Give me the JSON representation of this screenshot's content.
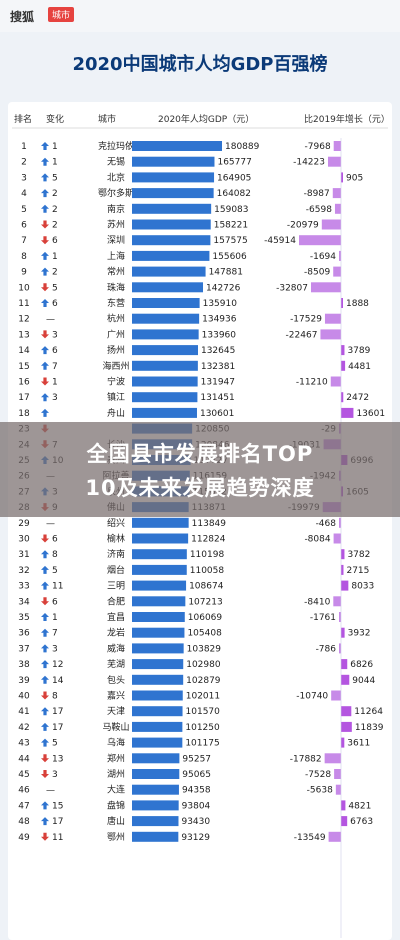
{
  "header": {
    "logo": "搜狐",
    "logo_tag": "城市"
  },
  "chart_data": {
    "type": "table",
    "title": "2020中国城市人均GDP百强榜",
    "columns": [
      "排名",
      "变化",
      "城市",
      "2020年人均GDP（元）",
      "比2019年增长（元）"
    ],
    "rows": [
      {
        "rank": "1",
        "change": "1",
        "dir": "up",
        "city": "克拉玛依",
        "gdp": 180889,
        "growth": -7968
      },
      {
        "rank": "2",
        "change": "1",
        "dir": "up",
        "city": "无锡",
        "gdp": 165777,
        "growth": -14223
      },
      {
        "rank": "3",
        "change": "5",
        "dir": "up",
        "city": "北京",
        "gdp": 164905,
        "growth": 905
      },
      {
        "rank": "4",
        "change": "2",
        "dir": "up",
        "city": "鄂尔多斯",
        "gdp": 164082,
        "growth": -8987
      },
      {
        "rank": "5",
        "change": "2",
        "dir": "up",
        "city": "南京",
        "gdp": 159083,
        "growth": -6598
      },
      {
        "rank": "6",
        "change": "2",
        "dir": "down",
        "city": "苏州",
        "gdp": 158221,
        "growth": -20979
      },
      {
        "rank": "7",
        "change": "6",
        "dir": "down",
        "city": "深圳",
        "gdp": 157575,
        "growth": -45914
      },
      {
        "rank": "8",
        "change": "1",
        "dir": "up",
        "city": "上海",
        "gdp": 155606,
        "growth": -1694
      },
      {
        "rank": "9",
        "change": "2",
        "dir": "up",
        "city": "常州",
        "gdp": 147881,
        "growth": -8509
      },
      {
        "rank": "10",
        "change": "5",
        "dir": "down",
        "city": "珠海",
        "gdp": 142726,
        "growth": -32807
      },
      {
        "rank": "11",
        "change": "6",
        "dir": "up",
        "city": "东营",
        "gdp": 135910,
        "growth": 1888
      },
      {
        "rank": "12",
        "change": "—",
        "dir": "none",
        "city": "杭州",
        "gdp": 134936,
        "growth": -17529
      },
      {
        "rank": "13",
        "change": "3",
        "dir": "down",
        "city": "广州",
        "gdp": 133960,
        "growth": -22467
      },
      {
        "rank": "14",
        "change": "6",
        "dir": "up",
        "city": "扬州",
        "gdp": 132645,
        "growth": 3789
      },
      {
        "rank": "15",
        "change": "7",
        "dir": "up",
        "city": "海西州",
        "gdp": 132381,
        "growth": 4481
      },
      {
        "rank": "16",
        "change": "1",
        "dir": "down",
        "city": "宁波",
        "gdp": 131947,
        "growth": -11210
      },
      {
        "rank": "17",
        "change": "3",
        "dir": "up",
        "city": "镇江",
        "gdp": 131451,
        "growth": 2472
      },
      {
        "rank": "18",
        "change": "",
        "dir": "up",
        "city": "舟山",
        "gdp": 130601,
        "growth": 13601
      },
      {
        "rank": "23",
        "change": "",
        "dir": "down",
        "city": "",
        "gdp": 120850,
        "growth": -29
      },
      {
        "rank": "24",
        "change": "7",
        "dir": "down",
        "city": "长沙",
        "gdp": 120846,
        "growth": -19031
      },
      {
        "rank": "25",
        "change": "10",
        "dir": "up",
        "city": "泰州",
        "gdp": 117727,
        "growth": 6996
      },
      {
        "rank": "26",
        "change": "—",
        "dir": "none",
        "city": "阿拉善",
        "gdp": 116159,
        "growth": -1942
      },
      {
        "rank": "27",
        "change": "3",
        "dir": "up",
        "city": "泉州",
        "gdp": 115672,
        "growth": 1605
      },
      {
        "rank": "28",
        "change": "9",
        "dir": "down",
        "city": "佛山",
        "gdp": 113871,
        "growth": -19979
      },
      {
        "rank": "29",
        "change": "—",
        "dir": "none",
        "city": "绍兴",
        "gdp": 113849,
        "growth": -468
      },
      {
        "rank": "30",
        "change": "6",
        "dir": "down",
        "city": "榆林",
        "gdp": 112824,
        "growth": -8084
      },
      {
        "rank": "31",
        "change": "8",
        "dir": "up",
        "city": "济南",
        "gdp": 110198,
        "growth": 3782
      },
      {
        "rank": "32",
        "change": "5",
        "dir": "up",
        "city": "烟台",
        "gdp": 110058,
        "growth": 2715
      },
      {
        "rank": "33",
        "change": "11",
        "dir": "up",
        "city": "三明",
        "gdp": 108674,
        "growth": 8033
      },
      {
        "rank": "34",
        "change": "6",
        "dir": "down",
        "city": "合肥",
        "gdp": 107213,
        "growth": -8410
      },
      {
        "rank": "35",
        "change": "1",
        "dir": "up",
        "city": "宜昌",
        "gdp": 106069,
        "growth": -1761
      },
      {
        "rank": "36",
        "change": "7",
        "dir": "up",
        "city": "龙岩",
        "gdp": 105408,
        "growth": 3932
      },
      {
        "rank": "37",
        "change": "3",
        "dir": "up",
        "city": "威海",
        "gdp": 103829,
        "growth": -786
      },
      {
        "rank": "38",
        "change": "12",
        "dir": "up",
        "city": "芜湖",
        "gdp": 102980,
        "growth": 6826
      },
      {
        "rank": "39",
        "change": "14",
        "dir": "up",
        "city": "包头",
        "gdp": 102879,
        "growth": 9044
      },
      {
        "rank": "40",
        "change": "8",
        "dir": "down",
        "city": "嘉兴",
        "gdp": 102011,
        "growth": -10740
      },
      {
        "rank": "41",
        "change": "17",
        "dir": "up",
        "city": "天津",
        "gdp": 101570,
        "growth": 11264
      },
      {
        "rank": "42",
        "change": "17",
        "dir": "up",
        "city": "马鞍山",
        "gdp": 101250,
        "growth": 11839
      },
      {
        "rank": "43",
        "change": "5",
        "dir": "up",
        "city": "乌海",
        "gdp": 101175,
        "growth": 3611
      },
      {
        "rank": "44",
        "change": "13",
        "dir": "down",
        "city": "郑州",
        "gdp": 95257,
        "growth": -17882
      },
      {
        "rank": "45",
        "change": "3",
        "dir": "down",
        "city": "湖州",
        "gdp": 95065,
        "growth": -7528
      },
      {
        "rank": "46",
        "change": "—",
        "dir": "none",
        "city": "大连",
        "gdp": 94358,
        "growth": -5638
      },
      {
        "rank": "47",
        "change": "15",
        "dir": "up",
        "city": "盘锦",
        "gdp": 93804,
        "growth": 4821
      },
      {
        "rank": "48",
        "change": "17",
        "dir": "up",
        "city": "唐山",
        "gdp": 93430,
        "growth": 6763
      },
      {
        "rank": "49",
        "change": "11",
        "dir": "down",
        "city": "鄂州",
        "gdp": 93129,
        "growth": -13549
      }
    ]
  },
  "banner": {
    "line1": "全国县市发展排名TOP",
    "line2": "10及未来发展趋势深度"
  },
  "colors": {
    "bar": "#2f74d0",
    "growth_pos": "#b455e0",
    "growth_neg": "#c78ae8",
    "arrow_up": "#2f74d0",
    "arrow_down": "#d8403a",
    "title": "#0b3a78"
  }
}
